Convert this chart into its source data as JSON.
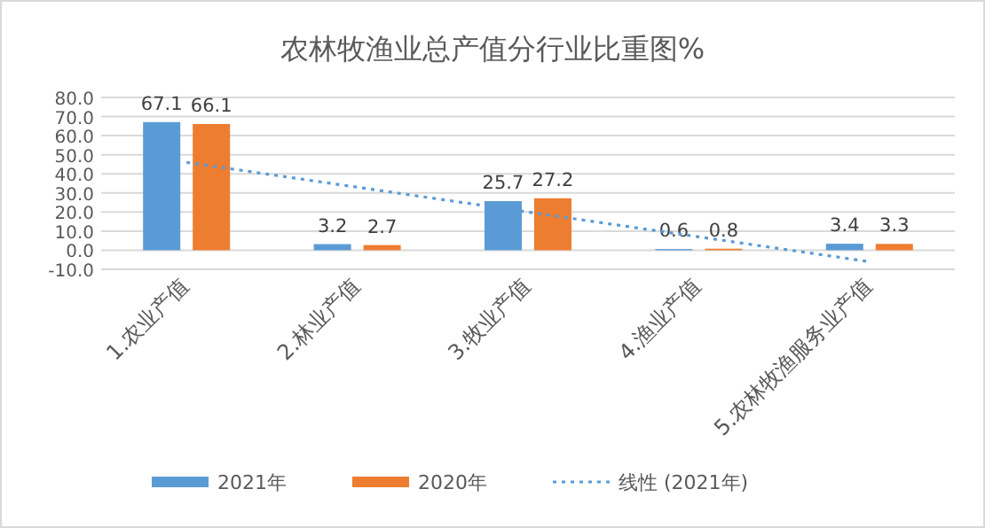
{
  "chart_data": {
    "type": "bar",
    "title": "农林牧渔业总产值分行业比重图%",
    "categories": [
      "1.农业产值",
      "2.林业产值",
      "3.牧业产值",
      "4.渔业产值",
      "5.农林牧渔服务业产值"
    ],
    "series": [
      {
        "name": "2021年",
        "color": "#5b9bd5",
        "values": [
          67.1,
          3.2,
          25.7,
          0.6,
          3.4
        ],
        "value_labels": [
          "67.1",
          "3.2",
          "25.7",
          "0.6",
          "3.4"
        ]
      },
      {
        "name": "2020年",
        "color": "#ed7d31",
        "values": [
          66.1,
          2.7,
          27.2,
          0.8,
          3.3
        ],
        "value_labels": [
          "66.1",
          "2.7",
          "27.2",
          "0.8",
          "3.3"
        ]
      },
      {
        "name": "线性 (2021年)",
        "type": "line",
        "line_style": "dotted",
        "color": "#5b9bd5",
        "values": [
          46,
          33,
          20,
          7,
          -6
        ]
      }
    ],
    "ylim": [
      -10,
      80
    ],
    "yticks": [
      {
        "value": -10,
        "label": "-10.0"
      },
      {
        "value": 0,
        "label": "0.0"
      },
      {
        "value": 10,
        "label": "10.0"
      },
      {
        "value": 20,
        "label": "20.0"
      },
      {
        "value": 30,
        "label": "30.0"
      },
      {
        "value": 40,
        "label": "40.0"
      },
      {
        "value": 50,
        "label": "50.0"
      },
      {
        "value": 60,
        "label": "60.0"
      },
      {
        "value": 70,
        "label": "70.0"
      },
      {
        "value": 80,
        "label": "80.0"
      }
    ],
    "grid": "y",
    "legend": "bottom"
  }
}
